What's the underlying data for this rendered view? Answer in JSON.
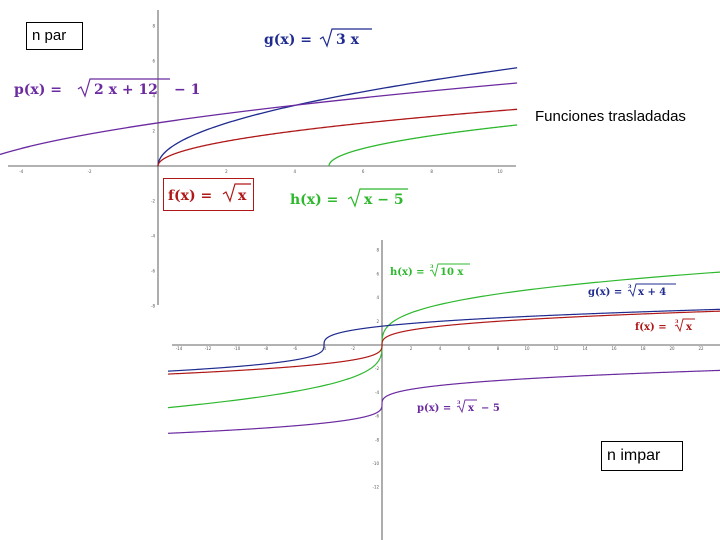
{
  "labels": {
    "n_par": "n par",
    "n_impar": "n impar",
    "title": "Funciones trasladadas"
  },
  "colors": {
    "blue": "#1f2b8f",
    "purple": "#6b2aa0",
    "red": "#b01818",
    "green": "#2eb82e"
  },
  "chart_data": [
    {
      "type": "line",
      "title": "",
      "xlim": [
        -8.5,
        10.5
      ],
      "ylim": [
        -8,
        8
      ],
      "x_ticks": [
        -8,
        -6,
        -4,
        -2,
        2,
        4,
        6,
        8,
        10
      ],
      "y_ticks": [
        -8,
        -6,
        -4,
        -2,
        2,
        4,
        6,
        8
      ],
      "series": [
        {
          "name": "g(x) = √3 x",
          "equation": {
            "fn": "g(x)",
            "rhs": "3 x"
          },
          "color": "blue",
          "domain": [
            0,
            10.5
          ]
        },
        {
          "name": "p(x) = √2 x + 12 − 1",
          "equation": {
            "fn": "p(x)",
            "rhs": "2 x + 12",
            "suffix": "− 1"
          },
          "color": "purple",
          "domain": [
            -6,
            10.5
          ]
        },
        {
          "name": "f(x) = √x",
          "equation": {
            "fn": "f(x)",
            "rhs": "x"
          },
          "color": "red",
          "domain": [
            0,
            10.5
          ]
        },
        {
          "name": "h(x) = √x − 5",
          "equation": {
            "fn": "h(x)",
            "rhs": "x − 5"
          },
          "color": "green",
          "domain": [
            5,
            10.5
          ]
        }
      ]
    },
    {
      "type": "line",
      "title": "",
      "xlim": [
        -24,
        24
      ],
      "ylim": [
        -13,
        14
      ],
      "x_ticks": [
        -22,
        -20,
        -18,
        -16,
        -14,
        -12,
        -10,
        -8,
        -6,
        -4,
        -2,
        2,
        4,
        6,
        8,
        10,
        12,
        14,
        16,
        18,
        20,
        22,
        24
      ],
      "y_ticks": [
        -12,
        -10,
        -8,
        -6,
        -4,
        -2,
        2,
        4,
        6,
        8,
        10,
        12
      ],
      "series": [
        {
          "name": "h(x) = ∛10 x",
          "equation": {
            "fn": "h(x)",
            "index": "3",
            "rhs": "10 x"
          },
          "color": "green"
        },
        {
          "name": "g(x) = ∛x + 4",
          "equation": {
            "fn": "g(x)",
            "index": "3",
            "rhs": "x + 4"
          },
          "color": "blue"
        },
        {
          "name": "f(x) = ∛x",
          "equation": {
            "fn": "f(x)",
            "index": "3",
            "rhs": "x"
          },
          "color": "red"
        },
        {
          "name": "p(x) = ∛x − 5",
          "equation": {
            "fn": "p(x)",
            "index": "3",
            "rhs": "x",
            "suffix": "− 5"
          },
          "color": "purple"
        }
      ]
    }
  ]
}
